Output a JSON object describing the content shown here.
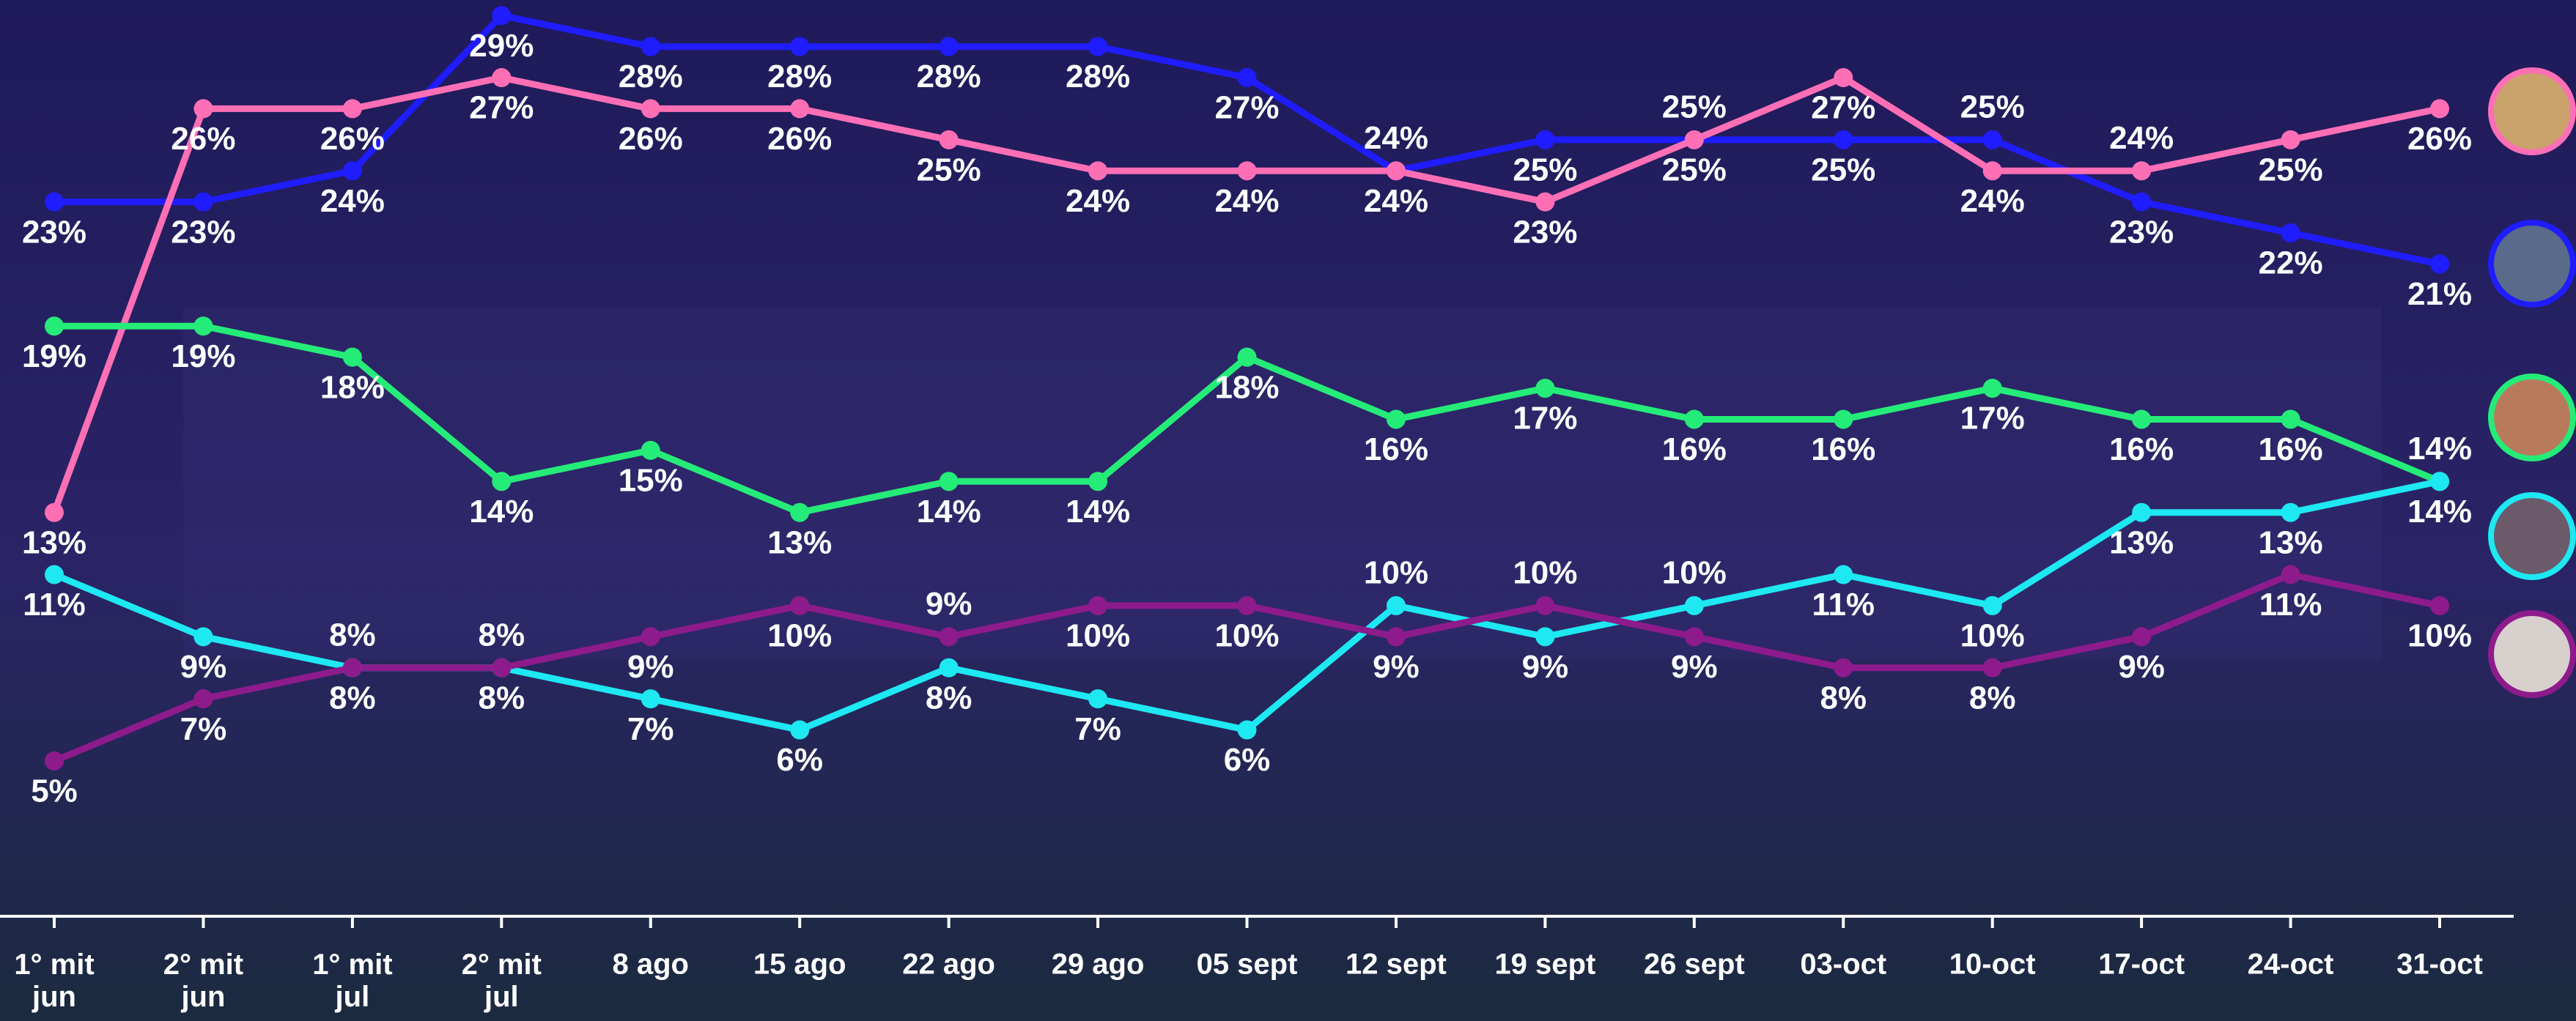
{
  "chart_data": {
    "type": "line",
    "categories": [
      "1° mit\njun",
      "2° mit\njun",
      "1° mit\njul",
      "2° mit\njul",
      "8 ago",
      "15 ago",
      "22 ago",
      "29 ago",
      "05 sept",
      "12 sept",
      "19 sept",
      "26 sept",
      "03-oct",
      "10-oct",
      "17-oct",
      "24-oct",
      "31-oct"
    ],
    "ylim": [
      0,
      29.5
    ],
    "series": [
      {
        "color": "#1f1cff",
        "values": [
          23,
          23,
          24,
          29,
          28,
          28,
          28,
          28,
          27,
          24,
          25,
          25,
          25,
          25,
          23,
          22,
          21
        ],
        "value_labels": [
          "23%",
          "23%",
          "24%",
          "29%",
          "28%",
          "28%",
          "28%",
          "28%",
          "27%",
          "24%",
          "25%",
          "25%",
          "25%",
          "25%",
          "23%",
          "22%",
          "21%"
        ]
      },
      {
        "color": "#ff6fb5",
        "values": [
          13,
          26,
          26,
          27,
          26,
          26,
          25,
          24,
          24,
          24,
          23,
          25,
          27,
          24,
          24,
          25,
          26
        ],
        "value_labels": [
          "13%",
          "26%",
          "26%",
          "27%",
          "26%",
          "26%",
          "25%",
          "24%",
          "24%",
          "24%",
          "23%",
          "25%",
          "27%",
          "24%",
          "24%",
          "25%",
          "26%"
        ]
      },
      {
        "color": "#25ec78",
        "values": [
          19,
          19,
          18,
          14,
          15,
          13,
          14,
          14,
          18,
          16,
          17,
          16,
          16,
          17,
          16,
          16,
          14
        ],
        "value_labels": [
          "19%",
          "19%",
          "18%",
          "14%",
          "15%",
          "13%",
          "14%",
          "14%",
          "18%",
          "16%",
          "17%",
          "16%",
          "16%",
          "17%",
          "16%",
          "16%",
          "14%"
        ]
      },
      {
        "color": "#1ee8f2",
        "values": [
          11,
          9,
          8,
          8,
          7,
          6,
          8,
          7,
          6,
          10,
          9,
          10,
          11,
          10,
          13,
          13,
          14
        ],
        "value_labels": [
          "11%",
          "9%",
          "8%",
          "8%",
          "7%",
          "6%",
          "8%",
          "7%",
          "6%",
          "10%",
          "9%",
          "10%",
          "11%",
          "10%",
          "13%",
          "13%",
          "14%"
        ]
      },
      {
        "color": "#8e1b8c",
        "values": [
          5,
          7,
          8,
          8,
          9,
          10,
          9,
          10,
          10,
          9,
          10,
          9,
          8,
          8,
          9,
          11,
          10
        ],
        "value_labels": [
          "5%",
          "7%",
          "8%",
          "8%",
          "9%",
          "10%",
          "9%",
          "10%",
          "10%",
          "9%",
          "10%",
          "9%",
          "8%",
          "8%",
          "9%",
          "11%",
          "10%"
        ]
      }
    ]
  }
}
